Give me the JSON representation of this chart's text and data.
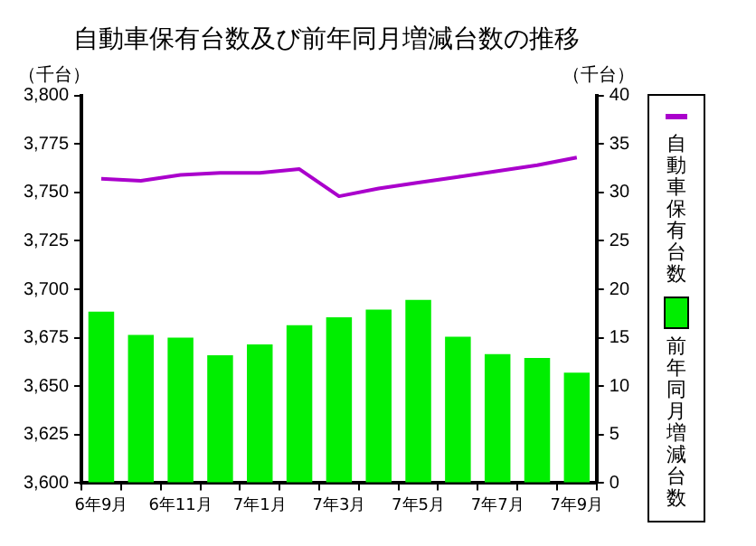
{
  "chart_data": {
    "type": "bar",
    "title": "自動車保有台数及び前年同月増減台数の推移",
    "ylabel": "（千台）",
    "y2label": "（千台）",
    "categories": [
      "6年9月",
      null,
      "6年11月",
      null,
      "7年1月",
      null,
      "7年3月",
      null,
      "7年5月",
      null,
      "7年7月",
      null,
      "7年9月"
    ],
    "series": [
      {
        "name": "自動車保有台数",
        "type": "line",
        "color": "#aa00cc",
        "axis": "y",
        "values": [
          3757,
          3756,
          3759,
          3760,
          3760,
          3762,
          3748,
          3752,
          3755,
          3758,
          3761,
          3764,
          3768
        ]
      },
      {
        "name": "前年同月増減台数",
        "color": "#00ee00",
        "axis": "y2",
        "values": [
          17.7,
          15.3,
          15.0,
          13.2,
          14.3,
          16.3,
          17.1,
          17.9,
          18.9,
          15.1,
          13.3,
          12.9,
          11.4
        ]
      }
    ],
    "ylim": [
      3600,
      3800
    ],
    "yticks": [
      {
        "value": 3600,
        "label": "3,600"
      },
      {
        "value": 3625,
        "label": "3,625"
      },
      {
        "value": 3650,
        "label": "3,650"
      },
      {
        "value": 3675,
        "label": "3,675"
      },
      {
        "value": 3700,
        "label": "3,700"
      },
      {
        "value": 3725,
        "label": "3,725"
      },
      {
        "value": 3750,
        "label": "3,750"
      },
      {
        "value": 3775,
        "label": "3,775"
      },
      {
        "value": 3800,
        "label": "3,800"
      }
    ],
    "y2lim": [
      0,
      40
    ],
    "y2ticks": [
      0,
      5,
      10,
      15,
      20,
      25,
      30,
      35,
      40
    ],
    "grid": false,
    "legend": "right",
    "marker": "none",
    "line_style": "solid"
  }
}
